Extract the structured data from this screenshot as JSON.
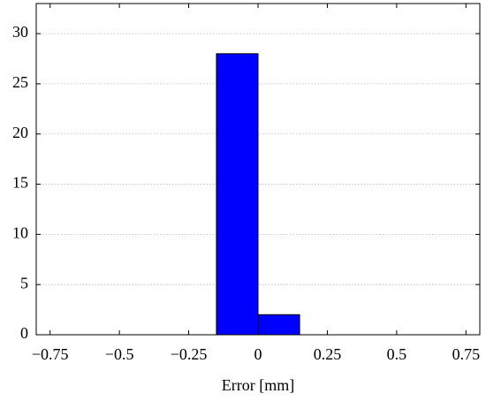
{
  "chart_data": {
    "type": "histogram",
    "x_label": "Error [mm]",
    "bins": [
      -0.15,
      0,
      0.15
    ],
    "values": [
      28,
      2
    ],
    "color": "#0000ff",
    "xlim": [
      -0.8,
      0.8
    ],
    "ylim": [
      0,
      33
    ],
    "xticks": [
      {
        "value": -0.75,
        "label": "−0.75"
      },
      {
        "value": -0.5,
        "label": "−0.5"
      },
      {
        "value": -0.25,
        "label": "−0.25"
      },
      0,
      0.25,
      0.5,
      0.75
    ],
    "yticks": [
      0,
      5,
      10,
      15,
      20,
      25,
      30
    ],
    "grid": true
  }
}
